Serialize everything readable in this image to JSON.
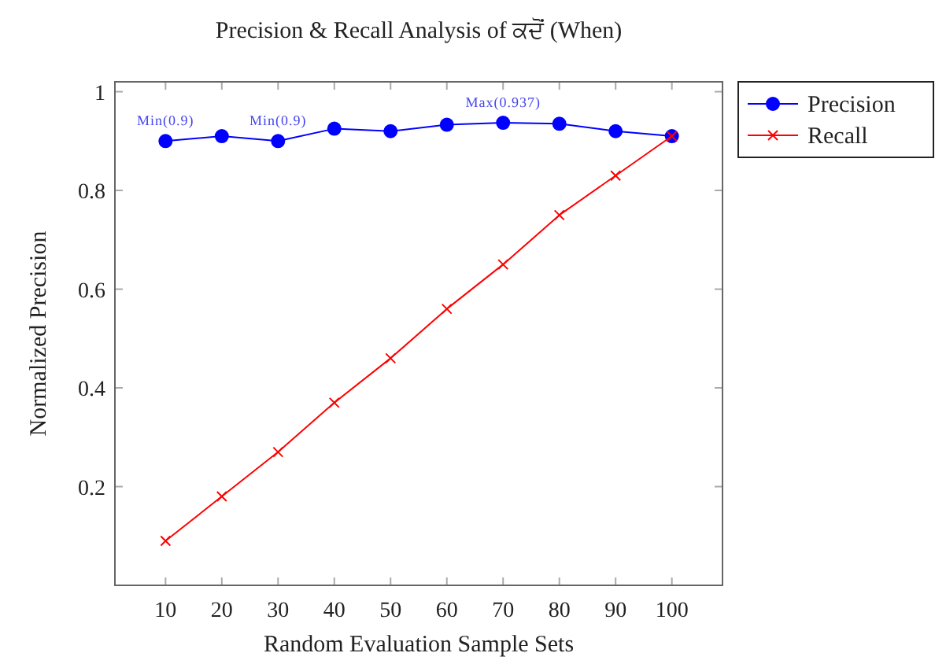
{
  "chart_data": {
    "type": "line",
    "title": "Precision & Recall Analysis of ਕਦੋਂ (When)",
    "xlabel": "Random Evaluation Sample Sets",
    "ylabel": "Normalized Precision",
    "x": [
      10,
      20,
      30,
      40,
      50,
      60,
      70,
      80,
      90,
      100
    ],
    "series": [
      {
        "name": "Precision",
        "color": "#0000ff",
        "marker": "circle",
        "values": [
          0.9,
          0.91,
          0.9,
          0.925,
          0.92,
          0.933,
          0.937,
          0.935,
          0.92,
          0.91
        ]
      },
      {
        "name": "Recall",
        "color": "#ff0000",
        "marker": "cross",
        "values": [
          0.09,
          0.18,
          0.27,
          0.37,
          0.46,
          0.56,
          0.65,
          0.75,
          0.83,
          0.91
        ]
      }
    ],
    "annotations": [
      {
        "text": "Min(0.9)",
        "x": 10,
        "y": 0.9
      },
      {
        "text": "Min(0.9)",
        "x": 30,
        "y": 0.9
      },
      {
        "text": "Max(0.937)",
        "x": 70,
        "y": 0.937
      }
    ],
    "xlim": [
      1,
      109
    ],
    "xticks": [
      10,
      20,
      30,
      40,
      50,
      60,
      70,
      80,
      90,
      100
    ],
    "ylim": [
      0,
      1.02
    ],
    "yticks": [
      0.2,
      0.4,
      0.6,
      0.8,
      1
    ],
    "grid": false,
    "legend": "top right",
    "line_style": "solid"
  }
}
